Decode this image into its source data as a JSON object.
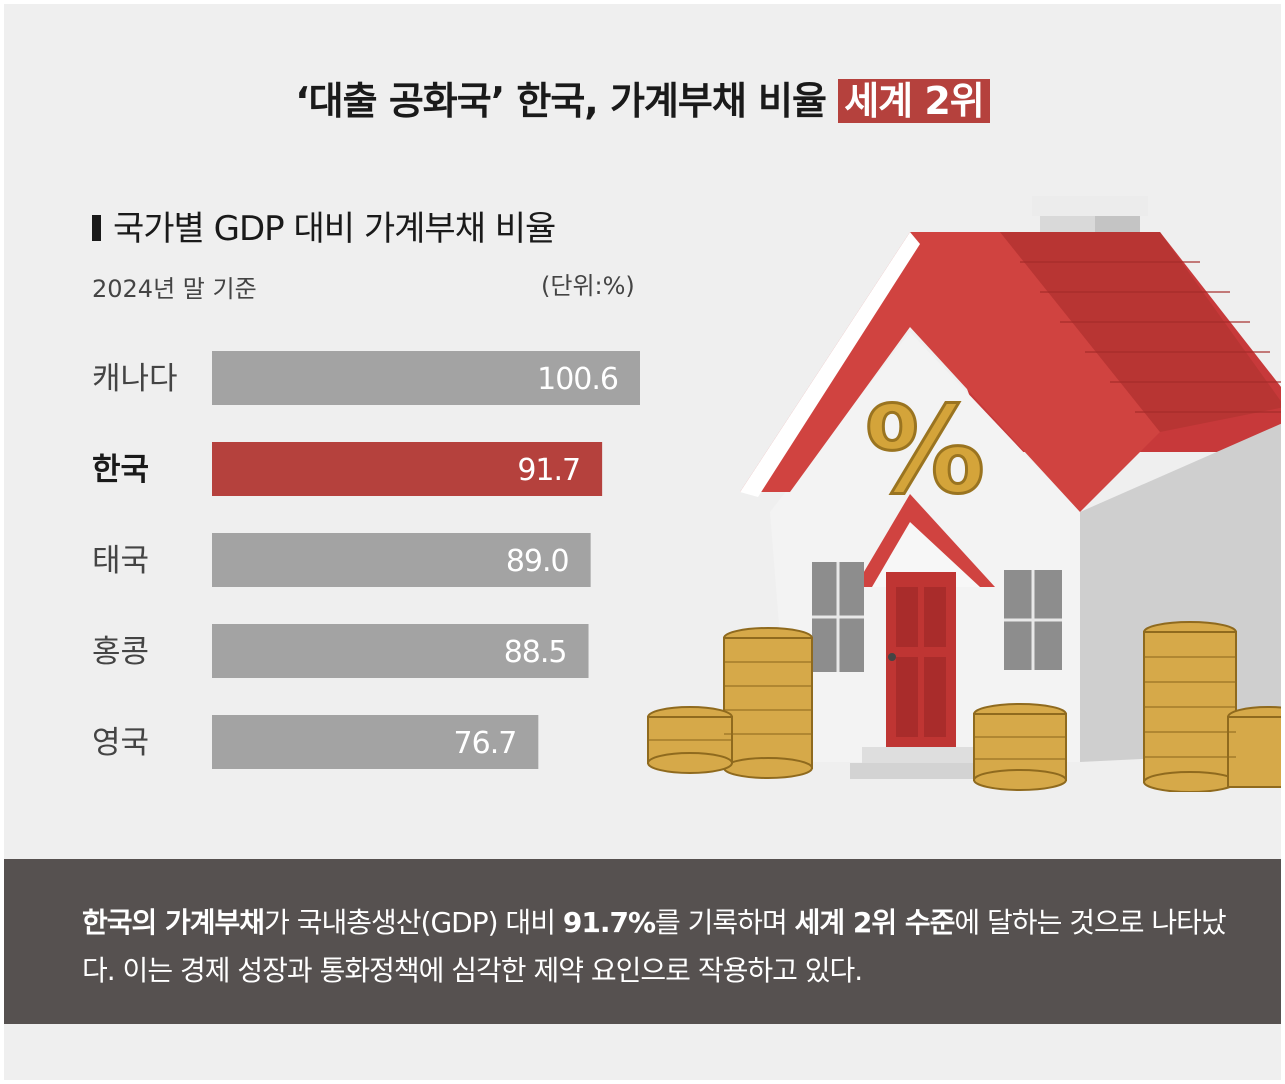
{
  "headline": {
    "text": "‘대출 공화국’ 한국, 가계부채 비율 ",
    "highlight": "세계 2위"
  },
  "chart_data": {
    "type": "bar",
    "orientation": "horizontal",
    "title": "국가별 GDP 대비 가계부채 비율",
    "subtitle": "2024년 말 기준",
    "unit": "(단위:%)",
    "categories": [
      "캐나다",
      "한국",
      "태국",
      "홍콩",
      "영국"
    ],
    "values": [
      100.6,
      91.7,
      89.0,
      88.5,
      76.7
    ],
    "value_labels": [
      "100.6",
      "91.7",
      "89.0",
      "88.5",
      "76.7"
    ],
    "highlight_category": "한국",
    "colors": {
      "default": "#a3a3a3",
      "highlight": "#b5413d"
    },
    "xlim": [
      0,
      100.6
    ],
    "grid": false,
    "legend": "none"
  },
  "caption": {
    "b1": "한국의 가계부채",
    "t1": "가 국내총생산(GDP) 대비 ",
    "b2": "91.7%",
    "t2": "를 기록하며 ",
    "b3": "세계 2위 수준",
    "t3": "에 달하는 것으로 나타났다. 이는 경제 성장과 통화정책에 심각한 제약 요인으로 작용하고 있다."
  },
  "illustration": {
    "description_icon": "house-with-percent-icon",
    "symbol": "%"
  },
  "colors": {
    "background": "#efefef",
    "accent": "#b5413d",
    "caption_bg": "#565150"
  }
}
